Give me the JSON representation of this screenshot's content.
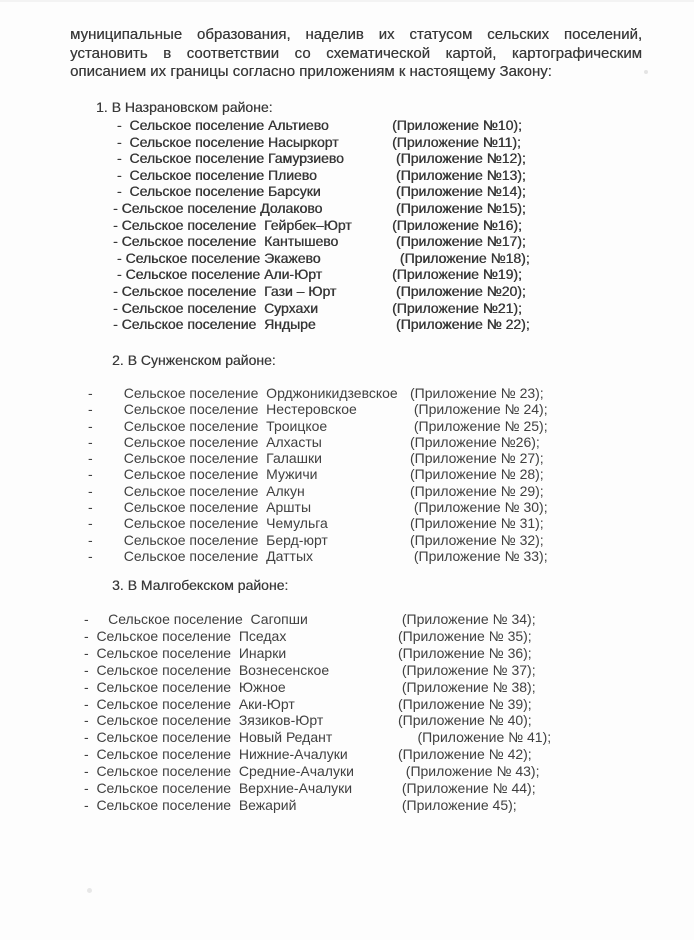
{
  "page": {
    "background": "#fdfdfd",
    "text_color": "#3e3e3e"
  },
  "intro": {
    "lines": [
      "муниципальные образования, наделив их статусом  сельских поселений,",
      "установить в соответствии со схематической картой, картографическим",
      "описанием их границы согласно приложениям к настоящему Закону:"
    ]
  },
  "sections": [
    {
      "heading": "1. В Назрановском районе:",
      "items": [
        {
          "left": " -  Сельское поселение Альтиево",
          "appendix": "(Приложение №10);"
        },
        {
          "left": " -  Сельское поселение Насыркорт",
          "appendix": "(Приложение №11);"
        },
        {
          "left": " -  Сельское поселение Гамурзиево",
          "appendix": " (Приложение №12);"
        },
        {
          "left": " -  Сельское поселение Плиево",
          "appendix": " (Приложение №13);"
        },
        {
          "left": " -  Сельское поселение Барсуки",
          "appendix": " (Приложение №14);"
        },
        {
          "left": "- Сельское поселение Долаково",
          "appendix": " (Приложение №15);"
        },
        {
          "left": "- Сельское поселение  Гейрбек–Юрт",
          "appendix": "(Приложение №16);"
        },
        {
          "left": "- Сельское поселение  Кантышево",
          "appendix": " (Приложение №17);"
        },
        {
          "left": " - Сельское поселение Экажево",
          "appendix": "  (Приложение №18);"
        },
        {
          "left": " - Сельское поселение Али-Юрт",
          "appendix": "(Приложение №19);"
        },
        {
          "left": "- Сельское поселение  Гази – Юрт",
          "appendix": " (Приложение №20);"
        },
        {
          "left": "- Сельское поселение  Сурхахи",
          "appendix": "(Приложение №21);"
        },
        {
          "left": "- Сельское поселение  Яндыре",
          "appendix": " (Приложение № 22);"
        }
      ]
    },
    {
      "heading": "2. В Сунженском районе:",
      "items": [
        {
          "left": "-        Сельское поселение  Орджоникидзевское",
          "appendix": "(Приложение № 23);"
        },
        {
          "left": "-        Сельское поселение  Нестеровское",
          "appendix": " (Приложение № 24);"
        },
        {
          "left": "-        Сельское поселение  Троицкое",
          "appendix": " (Приложение № 25);"
        },
        {
          "left": "-        Сельское поселение  Алхасты",
          "appendix": "(Приложение №26);"
        },
        {
          "left": "-        Сельское поселение  Галашки",
          "appendix": "(Приложение № 27);"
        },
        {
          "left": "-        Сельское поселение  Мужичи",
          "appendix": "(Приложение № 28);"
        },
        {
          "left": "-        Сельское поселение  Алкун",
          "appendix": "(Приложение № 29);"
        },
        {
          "left": "-        Сельское поселение  Аршты",
          "appendix": " (Приложение № 30);"
        },
        {
          "left": "-        Сельское поселение  Чемульга",
          "appendix": "(Приложение № 31);"
        },
        {
          "left": "-        Сельское поселение  Берд-юрт",
          "appendix": "(Приложение № 32);"
        },
        {
          "left": "-        Сельское поселение  Даттых",
          "appendix": " (Приложение № 33);"
        }
      ]
    },
    {
      "heading": "3. В Малгобекском районе:",
      "items": [
        {
          "left": "-     Сельское поселение  Сагопши",
          "appendix": " (Приложение № 34);"
        },
        {
          "left": "-  Сельское поселение  Пседах",
          "appendix": "(Приложение № 35);"
        },
        {
          "left": "-  Сельское поселение  Инарки",
          "appendix": "(Приложение № 36);"
        },
        {
          "left": "-  Сельское поселение  Вознесенское",
          "appendix": " (Приложение № 37);"
        },
        {
          "left": "-  Сельское поселение  Южное",
          "appendix": " (Приложение № 38);"
        },
        {
          "left": "-  Сельское поселение  Аки-Юрт",
          "appendix": "(Приложение № 39);"
        },
        {
          "left": "-  Сельское поселение  Зязиков-Юрт",
          "appendix": "(Приложение № 40);"
        },
        {
          "left": "-  Сельское поселение  Новый Редант",
          "appendix": "     (Приложение № 41);"
        },
        {
          "left": "-  Сельское поселение  Нижние-Ачалуки",
          "appendix": "(Приложение № 42);"
        },
        {
          "left": "-  Сельское поселение  Средние-Ачалуки",
          "appendix": "  (Приложение № 43);"
        },
        {
          "left": "-  Сельское поселение  Верхние-Ачалуки",
          "appendix": " (Приложение № 44);"
        },
        {
          "left": "-  Сельское поселение  Вежарий",
          "appendix": " (Приложение 45);"
        }
      ]
    }
  ]
}
